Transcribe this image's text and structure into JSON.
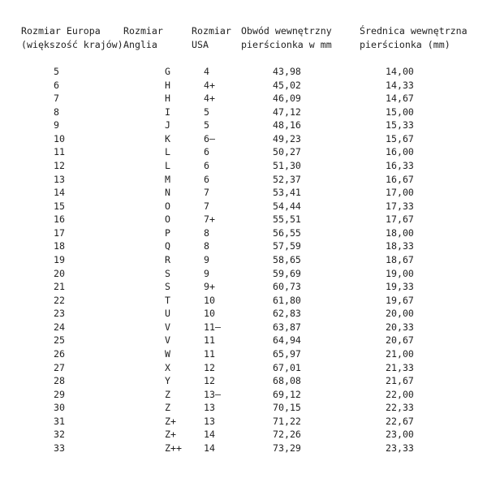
{
  "headers": [
    {
      "line1": "Rozmiar Europa",
      "line2": "(większość krajów)"
    },
    {
      "line1": "Rozmiar",
      "line2": "Anglia"
    },
    {
      "line1": "Rozmiar",
      "line2": "USA"
    },
    {
      "line1": "Obwód wewnętrzny",
      "line2": "pierścionka w mm"
    },
    {
      "line1": "Średnica wewnętrzna",
      "line2": "pierścionka (mm)"
    }
  ],
  "rows": [
    [
      "5",
      "G",
      "4",
      "43,98",
      "14,00"
    ],
    [
      "6",
      "H",
      "4+",
      "45,02",
      "14,33"
    ],
    [
      "7",
      "H",
      "4+",
      "46,09",
      "14,67"
    ],
    [
      "8",
      "I",
      "5",
      "47,12",
      "15,00"
    ],
    [
      "9",
      "J",
      "5",
      "48,16",
      "15,33"
    ],
    [
      "10",
      "K",
      "6–",
      "49,23",
      "15,67"
    ],
    [
      "11",
      "L",
      "6",
      "50,27",
      "16,00"
    ],
    [
      "12",
      "L",
      "6",
      "51,30",
      "16,33"
    ],
    [
      "13",
      "M",
      "6",
      "52,37",
      "16,67"
    ],
    [
      "14",
      "N",
      "7",
      "53,41",
      "17,00"
    ],
    [
      "15",
      "O",
      "7",
      "54,44",
      "17,33"
    ],
    [
      "16",
      "O",
      "7+",
      "55,51",
      "17,67"
    ],
    [
      "17",
      "P",
      "8",
      "56,55",
      "18,00"
    ],
    [
      "18",
      "Q",
      "8",
      "57,59",
      "18,33"
    ],
    [
      "19",
      "R",
      "9",
      "58,65",
      "18,67"
    ],
    [
      "20",
      "S",
      "9",
      "59,69",
      "19,00"
    ],
    [
      "21",
      "S",
      "9+",
      "60,73",
      "19,33"
    ],
    [
      "22",
      "T",
      "10",
      "61,80",
      "19,67"
    ],
    [
      "23",
      "U",
      "10",
      "62,83",
      "20,00"
    ],
    [
      "24",
      "V",
      "11–",
      "63,87",
      "20,33"
    ],
    [
      "25",
      "V",
      "11",
      "64,94",
      "20,67"
    ],
    [
      "26",
      "W",
      "11",
      "65,97",
      "21,00"
    ],
    [
      "27",
      "X",
      "12",
      "67,01",
      "21,33"
    ],
    [
      "28",
      "Y",
      "12",
      "68,08",
      "21,67"
    ],
    [
      "29",
      "Z",
      "13–",
      "69,12",
      "22,00"
    ],
    [
      "30",
      "Z",
      "13",
      "70,15",
      "22,33"
    ],
    [
      "31",
      "Z+",
      "13",
      "71,22",
      "22,67"
    ],
    [
      "32",
      "Z+",
      "14",
      "72,26",
      "23,00"
    ],
    [
      "33",
      "Z++",
      "14",
      "73,29",
      "23,33"
    ]
  ]
}
